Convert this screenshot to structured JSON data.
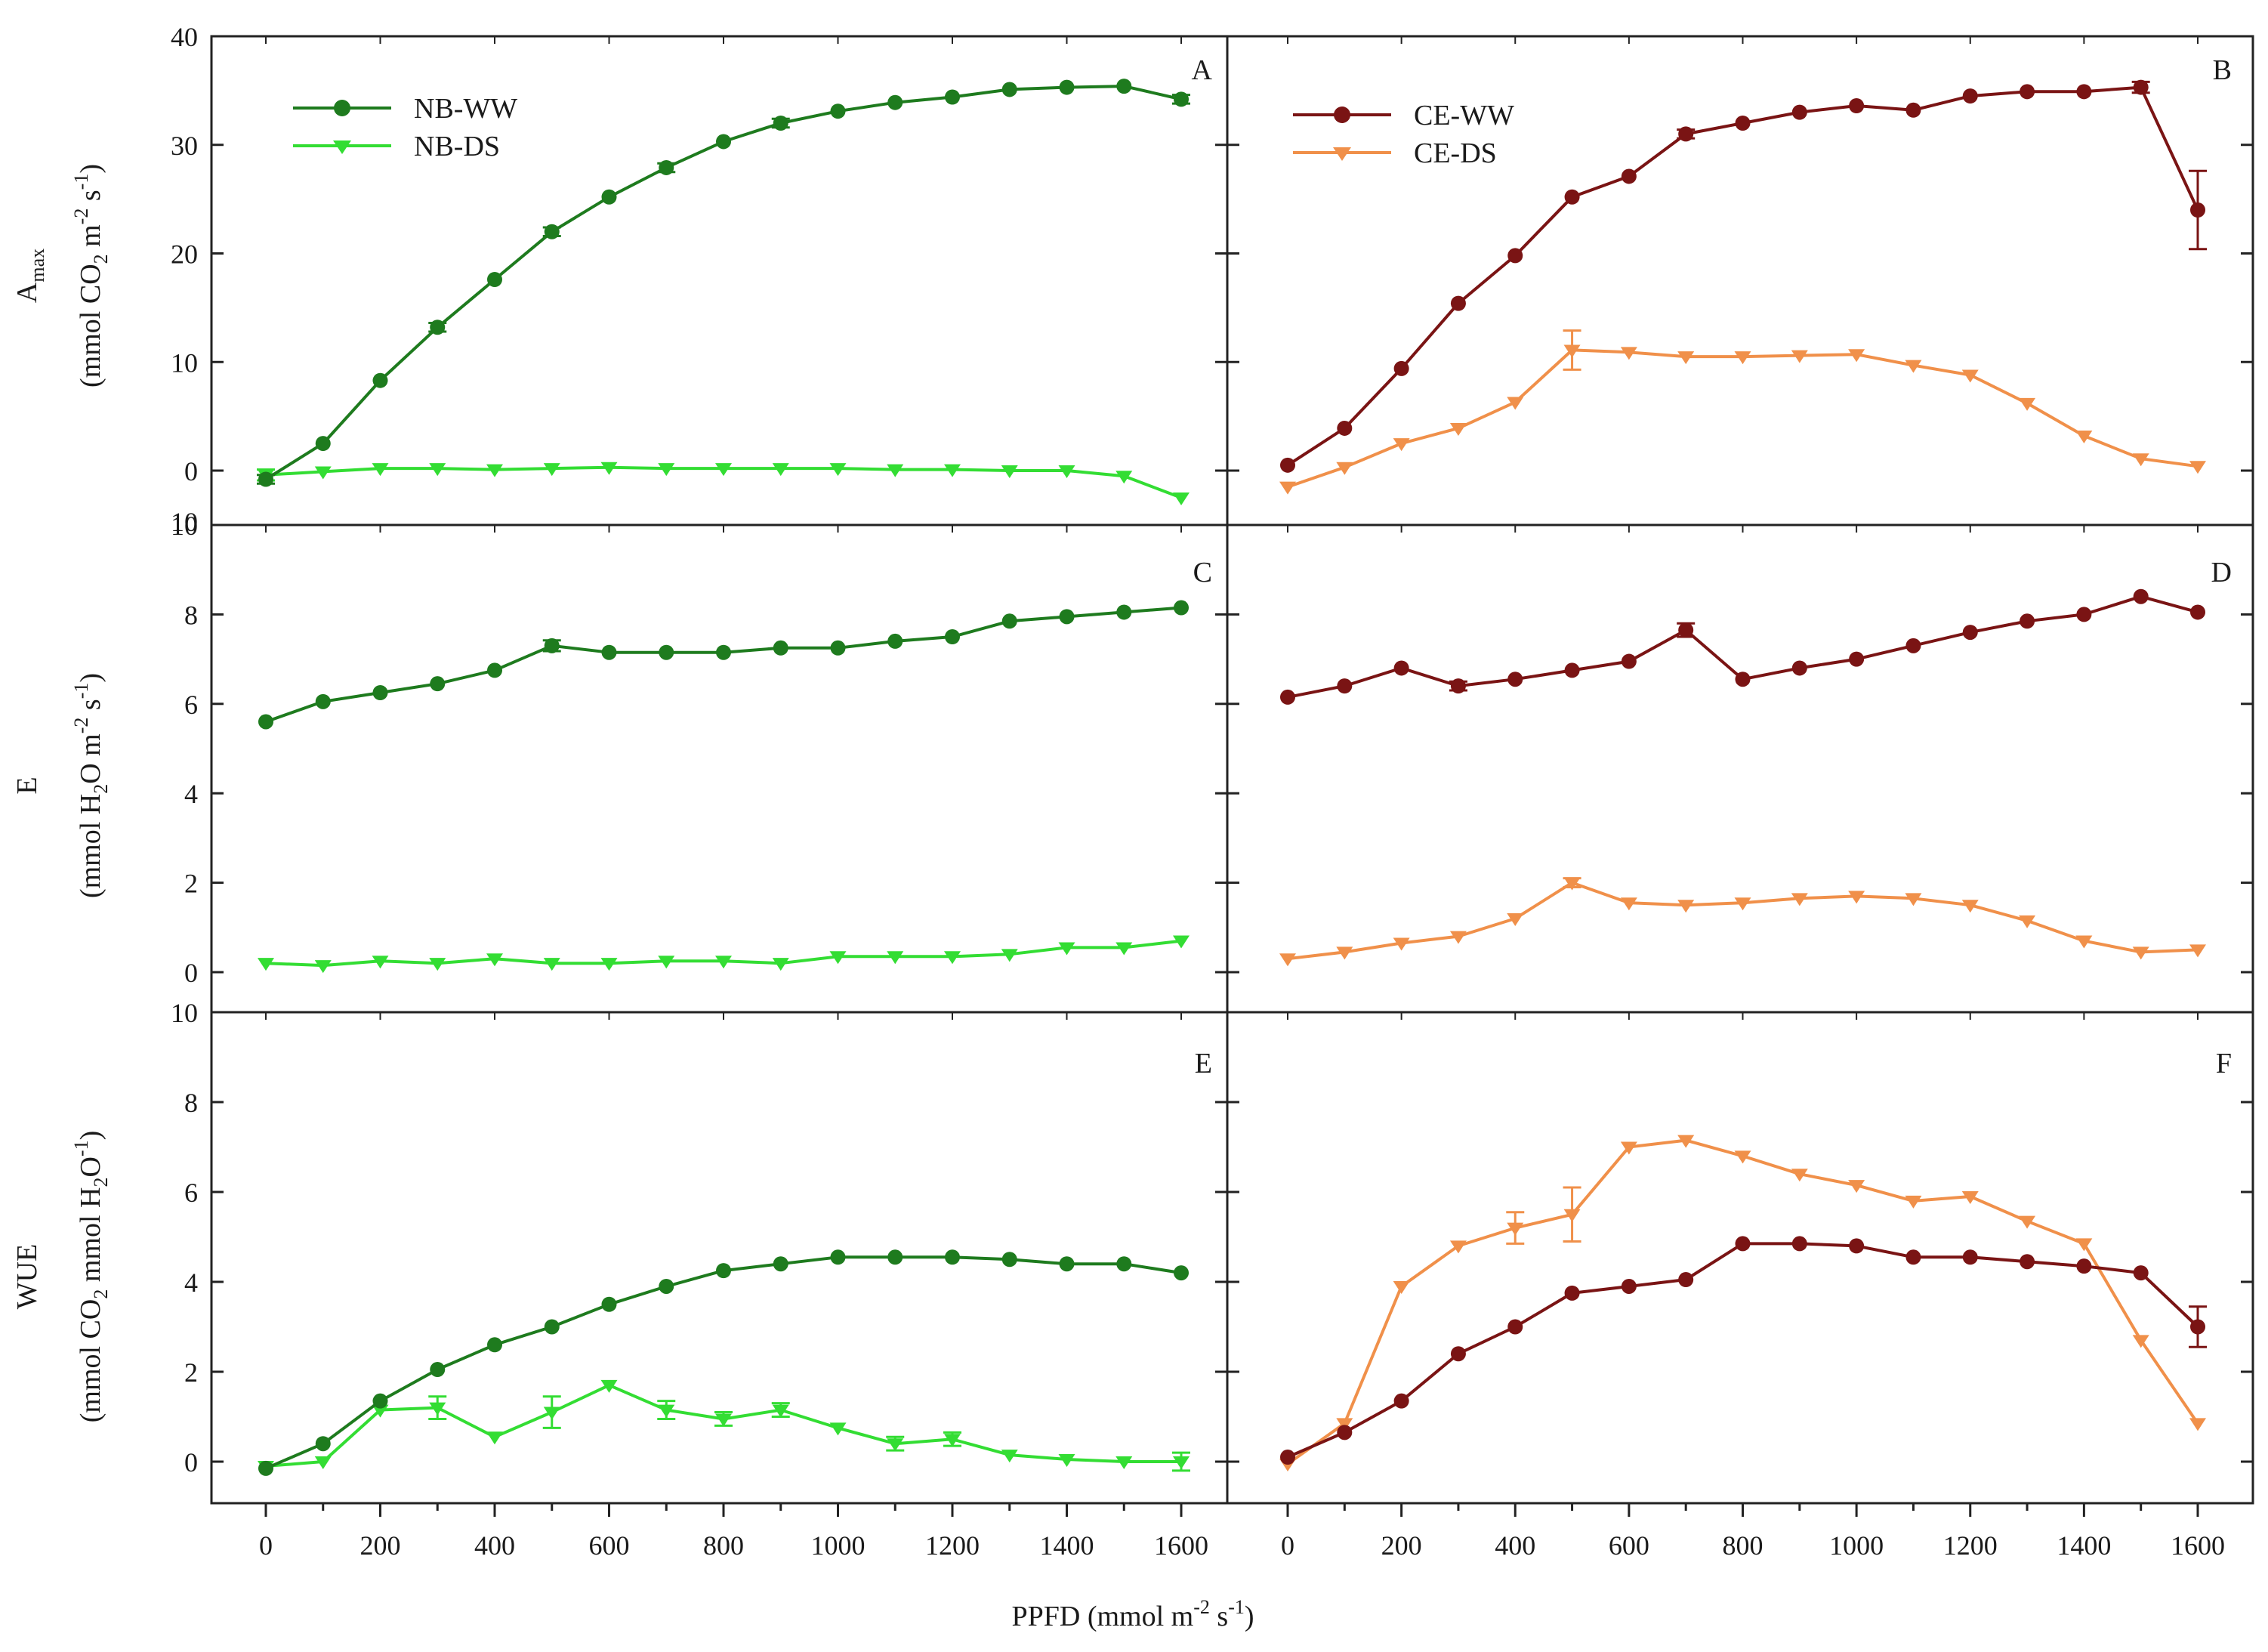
{
  "figure": {
    "xlabel": {
      "main": "PPFD (mmol m",
      "sup1": "-2",
      "mid": " s",
      "sup2": "-1",
      "end": ")"
    },
    "colors": {
      "nb_ww": "#1e7b1e",
      "nb_ds": "#33dd33",
      "ce_ww": "#7a1414",
      "ce_ds": "#f0904a",
      "axis": "#222222"
    }
  },
  "ylabels": {
    "row0": {
      "symbol": "A",
      "symbol_sub": "max",
      "unit_a": "(mmol CO",
      "unit_a_sub": "2",
      "unit_b": " m",
      "unit_b_sup": "-2",
      "unit_c": " s",
      "unit_c_sup": "-1",
      "unit_d": ")"
    },
    "row1": {
      "symbol": "E",
      "unit_a": "(mmol H",
      "unit_a_sub": "2",
      "unit_b": "O m",
      "unit_b_sup": "-2",
      "unit_c": " s",
      "unit_c_sup": "-1",
      "unit_d": ")"
    },
    "row2": {
      "symbol": "WUE",
      "unit_a": "(mmol CO",
      "unit_a_sub": "2",
      "unit_b": " mmol H",
      "unit_b_sub": "2",
      "unit_c": "O",
      "unit_c_sup": "-1",
      "unit_d": ")"
    }
  },
  "legends": {
    "left": [
      {
        "label": "NB-WW",
        "series": "nb_ww"
      },
      {
        "label": "NB-DS",
        "series": "nb_ds"
      }
    ],
    "right": [
      {
        "label": "CE-WW",
        "series": "ce_ww"
      },
      {
        "label": "CE-DS",
        "series": "ce_ds"
      }
    ]
  },
  "chart_data": [
    {
      "panel": "A",
      "type": "line",
      "row": 0,
      "col": 0,
      "x": [
        0,
        100,
        200,
        300,
        400,
        500,
        600,
        700,
        800,
        900,
        1000,
        1100,
        1200,
        1300,
        1400,
        1500,
        1600
      ],
      "xticks": [
        0,
        200,
        400,
        600,
        800,
        1000,
        1200,
        1400,
        1600
      ],
      "ylim": [
        -5,
        40
      ],
      "yticks": [
        0,
        10,
        20,
        30,
        40
      ],
      "series": [
        {
          "name": "NB-WW",
          "key": "nb_ww",
          "marker": "circle",
          "values": [
            -0.8,
            2.5,
            8.3,
            13.2,
            17.6,
            22.0,
            25.2,
            27.9,
            30.3,
            32.0,
            33.1,
            33.9,
            34.4,
            35.1,
            35.3,
            35.4,
            34.2
          ],
          "errors": [
            0.4,
            0,
            0,
            0.4,
            0,
            0.4,
            0,
            0.4,
            0,
            0.4,
            0,
            0,
            0,
            0,
            0,
            0,
            0.4
          ]
        },
        {
          "name": "NB-DS",
          "key": "nb_ds",
          "marker": "triangle",
          "values": [
            -0.4,
            -0.1,
            0.2,
            0.2,
            0.1,
            0.2,
            0.3,
            0.2,
            0.2,
            0.2,
            0.2,
            0.1,
            0.1,
            0.0,
            0.0,
            -0.5,
            -2.5
          ],
          "errors": [
            0.5,
            0,
            0,
            0,
            0,
            0,
            0,
            0,
            0,
            0,
            0,
            0,
            0,
            0,
            0,
            0,
            0
          ]
        }
      ]
    },
    {
      "panel": "B",
      "type": "line",
      "row": 0,
      "col": 1,
      "x": [
        0,
        100,
        200,
        300,
        400,
        500,
        600,
        700,
        800,
        900,
        1000,
        1100,
        1200,
        1300,
        1400,
        1500,
        1600
      ],
      "xticks": [
        0,
        200,
        400,
        600,
        800,
        1000,
        1200,
        1400,
        1600
      ],
      "ylim": [
        -5,
        40
      ],
      "yticks": [
        0,
        10,
        20,
        30,
        40
      ],
      "series": [
        {
          "name": "CE-WW",
          "key": "ce_ww",
          "marker": "circle",
          "values": [
            0.5,
            3.9,
            9.4,
            15.4,
            19.8,
            25.2,
            27.1,
            31.0,
            32.0,
            33.0,
            33.6,
            33.2,
            34.5,
            34.9,
            34.9,
            35.3,
            24.0
          ],
          "errors": [
            0,
            0,
            0,
            0,
            0,
            0,
            0,
            0.4,
            0,
            0,
            0,
            0,
            0,
            0,
            0,
            0.5,
            3.6
          ]
        },
        {
          "name": "CE-DS",
          "key": "ce_ds",
          "marker": "triangle",
          "values": [
            -1.5,
            0.3,
            2.5,
            3.9,
            6.3,
            11.1,
            10.9,
            10.5,
            10.5,
            10.6,
            10.7,
            9.7,
            8.8,
            6.2,
            3.2,
            1.1,
            0.4
          ],
          "errors": [
            0,
            0,
            0,
            0,
            0,
            1.8,
            0,
            0,
            0,
            0,
            0,
            0,
            0,
            0,
            0,
            0,
            0
          ]
        }
      ]
    },
    {
      "panel": "C",
      "type": "line",
      "row": 1,
      "col": 0,
      "x": [
        0,
        100,
        200,
        300,
        400,
        500,
        600,
        700,
        800,
        900,
        1000,
        1100,
        1200,
        1300,
        1400,
        1500,
        1600
      ],
      "xticks": [
        0,
        200,
        400,
        600,
        800,
        1000,
        1200,
        1400,
        1600
      ],
      "ylim": [
        -1,
        10
      ],
      "yticks": [
        0,
        2,
        4,
        6,
        8,
        10
      ],
      "series": [
        {
          "name": "NB-WW",
          "key": "nb_ww",
          "marker": "circle",
          "values": [
            5.6,
            6.05,
            6.25,
            6.45,
            6.75,
            7.3,
            7.15,
            7.15,
            7.15,
            7.25,
            7.25,
            7.4,
            7.5,
            7.85,
            7.95,
            8.05,
            8.15
          ],
          "errors": [
            0,
            0,
            0,
            0,
            0,
            0.12,
            0,
            0,
            0,
            0,
            0,
            0,
            0,
            0,
            0,
            0,
            0
          ]
        },
        {
          "name": "NB-DS",
          "key": "nb_ds",
          "marker": "triangle",
          "values": [
            0.2,
            0.15,
            0.25,
            0.2,
            0.3,
            0.2,
            0.2,
            0.25,
            0.25,
            0.2,
            0.35,
            0.35,
            0.35,
            0.4,
            0.55,
            0.55,
            0.7
          ],
          "errors": [
            0,
            0,
            0,
            0,
            0,
            0,
            0,
            0,
            0,
            0,
            0,
            0,
            0,
            0,
            0,
            0,
            0
          ]
        }
      ]
    },
    {
      "panel": "D",
      "type": "line",
      "row": 1,
      "col": 1,
      "x": [
        0,
        100,
        200,
        300,
        400,
        500,
        600,
        700,
        800,
        900,
        1000,
        1100,
        1200,
        1300,
        1400,
        1500,
        1600
      ],
      "xticks": [
        0,
        200,
        400,
        600,
        800,
        1000,
        1200,
        1400,
        1600
      ],
      "ylim": [
        -1,
        10
      ],
      "yticks": [
        0,
        2,
        4,
        6,
        8,
        10
      ],
      "series": [
        {
          "name": "CE-WW",
          "key": "ce_ww",
          "marker": "circle",
          "values": [
            6.15,
            6.4,
            6.8,
            6.4,
            6.55,
            6.75,
            6.95,
            7.65,
            6.55,
            6.8,
            7.0,
            7.3,
            7.6,
            7.85,
            8.0,
            8.4,
            8.05
          ],
          "errors": [
            0,
            0,
            0,
            0.1,
            0,
            0,
            0,
            0.15,
            0,
            0,
            0,
            0,
            0,
            0,
            0,
            0,
            0
          ]
        },
        {
          "name": "CE-DS",
          "key": "ce_ds",
          "marker": "triangle",
          "values": [
            0.3,
            0.45,
            0.65,
            0.8,
            1.2,
            2.0,
            1.55,
            1.5,
            1.55,
            1.65,
            1.7,
            1.65,
            1.5,
            1.15,
            0.7,
            0.45,
            0.5
          ],
          "errors": [
            0,
            0,
            0,
            0,
            0,
            0.1,
            0,
            0,
            0,
            0,
            0,
            0,
            0,
            0,
            0,
            0,
            0
          ]
        }
      ]
    },
    {
      "panel": "E",
      "type": "line",
      "row": 2,
      "col": 0,
      "x": [
        0,
        100,
        200,
        300,
        400,
        500,
        600,
        700,
        800,
        900,
        1000,
        1100,
        1200,
        1300,
        1400,
        1500,
        1600
      ],
      "xticks": [
        0,
        200,
        400,
        600,
        800,
        1000,
        1200,
        1400,
        1600
      ],
      "ylim": [
        -1,
        10
      ],
      "yticks": [
        0,
        2,
        4,
        6,
        8,
        10
      ],
      "series": [
        {
          "name": "NB-WW",
          "key": "nb_ww",
          "marker": "circle",
          "values": [
            -0.15,
            0.4,
            1.35,
            2.05,
            2.6,
            3.0,
            3.5,
            3.9,
            4.25,
            4.4,
            4.55,
            4.55,
            4.55,
            4.5,
            4.4,
            4.4,
            4.2
          ],
          "errors": [
            0,
            0,
            0,
            0,
            0,
            0,
            0,
            0,
            0,
            0,
            0,
            0,
            0,
            0,
            0,
            0,
            0
          ]
        },
        {
          "name": "NB-DS",
          "key": "nb_ds",
          "marker": "triangle",
          "values": [
            -0.1,
            0.0,
            1.15,
            1.2,
            0.55,
            1.1,
            1.7,
            1.15,
            0.95,
            1.15,
            0.75,
            0.4,
            0.5,
            0.15,
            0.05,
            0.0,
            0.0
          ],
          "errors": [
            0,
            0,
            0,
            0.25,
            0,
            0.35,
            0,
            0.2,
            0.15,
            0.15,
            0,
            0.15,
            0.15,
            0,
            0,
            0,
            0.2
          ]
        }
      ]
    },
    {
      "panel": "F",
      "type": "line",
      "row": 2,
      "col": 1,
      "x": [
        0,
        100,
        200,
        300,
        400,
        500,
        600,
        700,
        800,
        900,
        1000,
        1100,
        1200,
        1300,
        1400,
        1500,
        1600
      ],
      "xticks": [
        0,
        200,
        400,
        600,
        800,
        1000,
        1200,
        1400,
        1600
      ],
      "ylim": [
        -1,
        10
      ],
      "yticks": [
        0,
        2,
        4,
        6,
        8,
        10
      ],
      "series": [
        {
          "name": "CE-WW",
          "key": "ce_ww",
          "marker": "circle",
          "values": [
            0.1,
            0.65,
            1.35,
            2.4,
            3.0,
            3.75,
            3.9,
            4.05,
            4.85,
            4.85,
            4.8,
            4.55,
            4.55,
            4.45,
            4.35,
            4.2,
            3.0
          ],
          "errors": [
            0,
            0,
            0,
            0,
            0,
            0,
            0,
            0,
            0,
            0,
            0,
            0,
            0,
            0,
            0,
            0,
            0.45
          ]
        },
        {
          "name": "CE-DS",
          "key": "ce_ds",
          "marker": "triangle",
          "values": [
            -0.05,
            0.85,
            3.9,
            4.8,
            5.2,
            5.5,
            7.0,
            7.15,
            6.8,
            6.4,
            6.15,
            5.8,
            5.9,
            5.35,
            4.85,
            2.7,
            0.85
          ],
          "errors": [
            0,
            0,
            0,
            0,
            0.35,
            0.6,
            0,
            0,
            0,
            0,
            0,
            0,
            0,
            0,
            0,
            0,
            0
          ]
        }
      ]
    }
  ]
}
